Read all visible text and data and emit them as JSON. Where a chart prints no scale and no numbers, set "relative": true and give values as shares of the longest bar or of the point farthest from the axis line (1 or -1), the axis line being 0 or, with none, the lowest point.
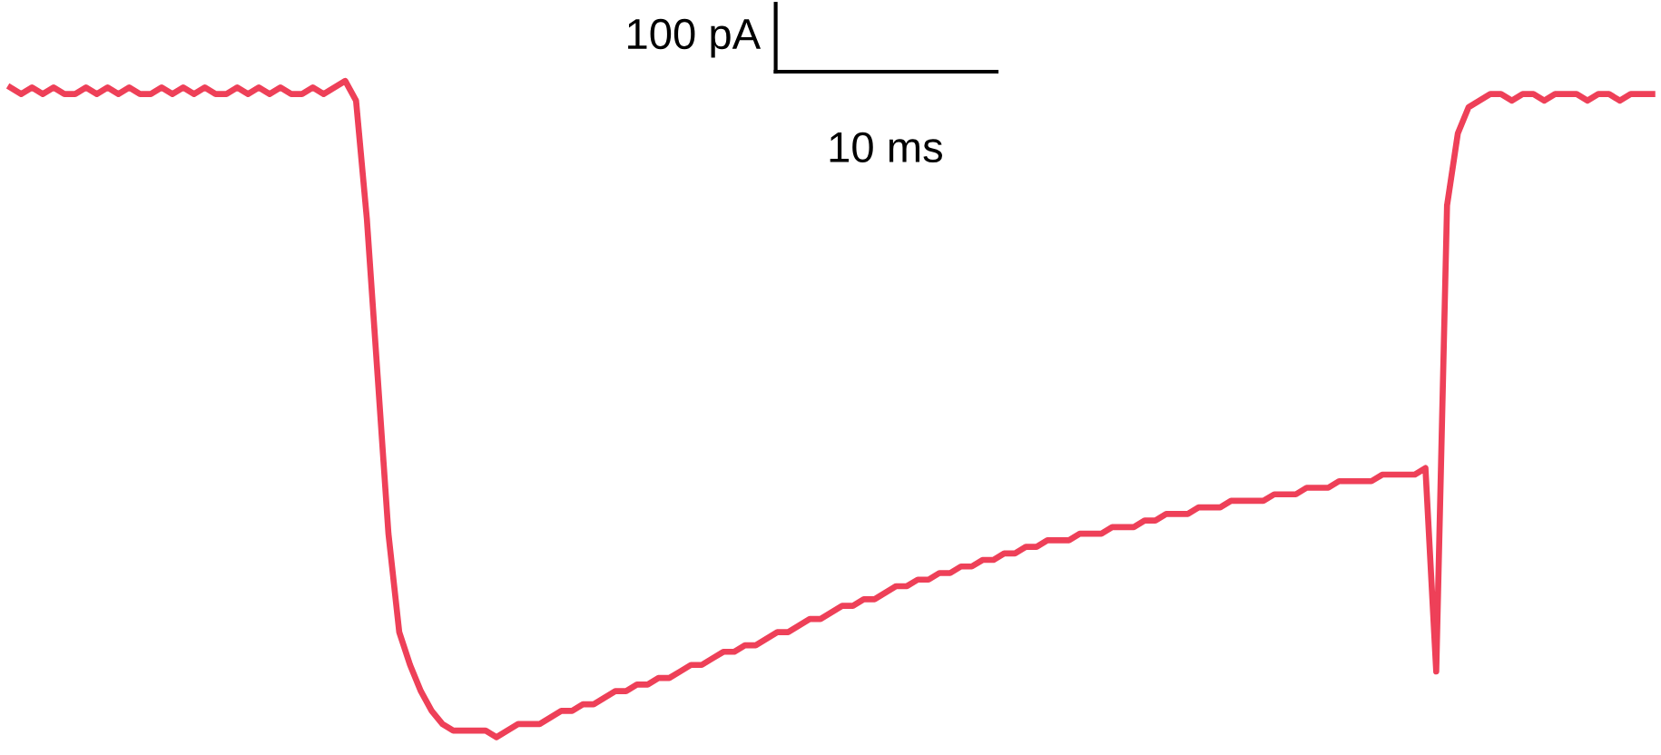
{
  "chart_data": {
    "type": "line",
    "relative": true,
    "categories": [
      null,
      null,
      null,
      null,
      null,
      null,
      null,
      null,
      null,
      null,
      null,
      null,
      null,
      null,
      null,
      null,
      null,
      null,
      null,
      null,
      null,
      null,
      null,
      null,
      null,
      null,
      null,
      null,
      null,
      null,
      null,
      null,
      null,
      null,
      null,
      null,
      null,
      null,
      null,
      null,
      null,
      null,
      null,
      null,
      null,
      null,
      null,
      null,
      null,
      null,
      null,
      null,
      null,
      null,
      null,
      null,
      null,
      null,
      null,
      null,
      null,
      null,
      null,
      null,
      null,
      null,
      null,
      null,
      null,
      null,
      null,
      null,
      null,
      null,
      null,
      null,
      null,
      null,
      null,
      null,
      null,
      null,
      null,
      null,
      null,
      null,
      null,
      null,
      null,
      null,
      null,
      null,
      null,
      null,
      null,
      null,
      null,
      null,
      null,
      null,
      null,
      null,
      null,
      null,
      null,
      null,
      null,
      null,
      null,
      null,
      null,
      null,
      null,
      null,
      null,
      null,
      null,
      null,
      null,
      null,
      null,
      null,
      null,
      null,
      null,
      null,
      null,
      null,
      null,
      null,
      null,
      null,
      null,
      null,
      null,
      null,
      null,
      null,
      null,
      null,
      null,
      null,
      null,
      null,
      null,
      null,
      null,
      null,
      null,
      null,
      null,
      null,
      null
    ],
    "series": [
      {
        "color": "#ee4058",
        "values": [
          0.99,
          0.98,
          0.99,
          0.98,
          0.99,
          0.98,
          0.98,
          0.99,
          0.98,
          0.99,
          0.98,
          0.99,
          0.98,
          0.98,
          0.99,
          0.98,
          0.99,
          0.98,
          0.99,
          0.98,
          0.98,
          0.99,
          0.98,
          0.99,
          0.98,
          0.99,
          0.98,
          0.98,
          0.99,
          0.98,
          0.99,
          1.0,
          0.97,
          0.79,
          0.55,
          0.31,
          0.16,
          0.11,
          0.07,
          0.04,
          0.02,
          0.01,
          0.01,
          0.01,
          0.01,
          0.0,
          0.01,
          0.02,
          0.02,
          0.02,
          0.03,
          0.04,
          0.04,
          0.05,
          0.05,
          0.06,
          0.07,
          0.07,
          0.08,
          0.08,
          0.09,
          0.09,
          0.1,
          0.11,
          0.11,
          0.12,
          0.13,
          0.13,
          0.14,
          0.14,
          0.15,
          0.16,
          0.16,
          0.17,
          0.18,
          0.18,
          0.19,
          0.2,
          0.2,
          0.21,
          0.21,
          0.22,
          0.23,
          0.23,
          0.24,
          0.24,
          0.25,
          0.25,
          0.26,
          0.26,
          0.27,
          0.27,
          0.28,
          0.28,
          0.29,
          0.29,
          0.3,
          0.3,
          0.3,
          0.31,
          0.31,
          0.31,
          0.32,
          0.32,
          0.32,
          0.33,
          0.33,
          0.34,
          0.34,
          0.34,
          0.35,
          0.35,
          0.35,
          0.36,
          0.36,
          0.36,
          0.36,
          0.37,
          0.37,
          0.37,
          0.38,
          0.38,
          0.38,
          0.39,
          0.39,
          0.39,
          0.39,
          0.4,
          0.4,
          0.4,
          0.4,
          0.41,
          0.1,
          0.81,
          0.92,
          0.96,
          0.97,
          0.98,
          0.98,
          0.97,
          0.98,
          0.98,
          0.97,
          0.98,
          0.98,
          0.98,
          0.97,
          0.98,
          0.98,
          0.97,
          0.98,
          0.98,
          0.98
        ]
      }
    ],
    "annotations": [
      "100 pA",
      "10 ms"
    ],
    "line_style": "solid",
    "marker": "none"
  }
}
